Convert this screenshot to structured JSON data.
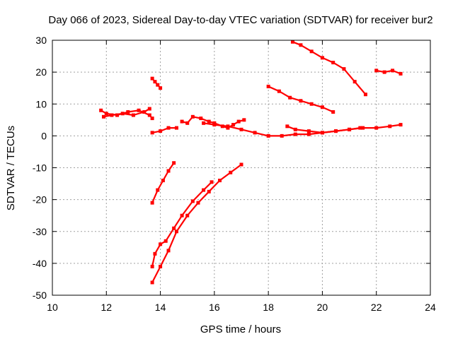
{
  "chart_data": {
    "type": "scatter",
    "title": "Day 066 of 2023, Sidereal Day-to-day VTEC variation (SDTVAR) for receiver bur2",
    "xlabel": "GPS time / hours",
    "ylabel": "SDTVAR / TECUs",
    "xlim": [
      10,
      24
    ],
    "ylim": [
      -50,
      30
    ],
    "xticks": [
      10,
      12,
      14,
      16,
      18,
      20,
      22,
      24
    ],
    "yticks": [
      -50,
      -40,
      -30,
      -20,
      -10,
      0,
      10,
      20,
      30
    ],
    "grid": true,
    "legend": "none",
    "color": "#ff0000",
    "marker": "plus",
    "series": [
      {
        "x": [
          11.8,
          12.0,
          12.4,
          12.8,
          13.2,
          13.6,
          13.7
        ],
        "y": [
          8.0,
          7.0,
          6.5,
          7.5,
          8.0,
          6.5,
          5.5
        ]
      },
      {
        "x": [
          11.9,
          12.2,
          12.6,
          13.0,
          13.4,
          13.6
        ],
        "y": [
          6.0,
          6.5,
          7.0,
          6.5,
          7.5,
          8.5
        ]
      },
      {
        "x": [
          13.7,
          13.8,
          13.9,
          14.0
        ],
        "y": [
          18.0,
          17.0,
          16.0,
          15.0
        ]
      },
      {
        "x": [
          13.7,
          14.0,
          14.3,
          14.6
        ],
        "y": [
          1.0,
          1.5,
          2.5,
          2.5
        ]
      },
      {
        "x": [
          13.7,
          13.9,
          14.1,
          14.3,
          14.5
        ],
        "y": [
          -21.0,
          -17.0,
          -14.0,
          -11.0,
          -8.5
        ]
      },
      {
        "x": [
          13.7,
          13.8,
          14.0,
          14.2,
          14.5,
          14.8,
          15.2,
          15.6,
          15.9
        ],
        "y": [
          -41.0,
          -37.0,
          -34.0,
          -33.0,
          -29.0,
          -25.0,
          -20.5,
          -17.0,
          -14.5
        ]
      },
      {
        "x": [
          13.7,
          14.0,
          14.3,
          14.6,
          15.0,
          15.4,
          15.8,
          16.2,
          16.6,
          17.0
        ],
        "y": [
          -46.0,
          -41.0,
          -36.0,
          -30.0,
          -25.0,
          -21.0,
          -17.5,
          -14.0,
          -11.5,
          -9.0
        ]
      },
      {
        "x": [
          14.8,
          15.0,
          15.2,
          15.5,
          15.8,
          16.0,
          16.3,
          16.5,
          16.7,
          16.9,
          17.1
        ],
        "y": [
          4.5,
          4.0,
          6.0,
          5.5,
          4.5,
          4.0,
          3.0,
          2.5,
          3.5,
          4.5,
          5.0
        ]
      },
      {
        "x": [
          15.6,
          16.0,
          16.5,
          17.0,
          17.5,
          18.0,
          18.5,
          19.0,
          19.5,
          20.0,
          20.5,
          21.0,
          21.5,
          22.0,
          22.5,
          22.9
        ],
        "y": [
          4.0,
          3.5,
          3.0,
          2.0,
          1.0,
          0.0,
          0.0,
          0.5,
          0.5,
          1.0,
          1.5,
          2.0,
          2.5,
          2.5,
          3.0,
          3.5
        ]
      },
      {
        "x": [
          18.7,
          19.0,
          19.5,
          20.0,
          20.5,
          21.0,
          21.4
        ],
        "y": [
          3.0,
          2.0,
          1.5,
          1.0,
          1.5,
          2.0,
          2.5
        ]
      },
      {
        "x": [
          18.0,
          18.4,
          18.8,
          19.2,
          19.6,
          20.0,
          20.4
        ],
        "y": [
          15.5,
          14.0,
          12.0,
          11.0,
          10.0,
          9.0,
          7.5
        ]
      },
      {
        "x": [
          18.9,
          19.2,
          19.6,
          20.0,
          20.4,
          20.8,
          21.2,
          21.6
        ],
        "y": [
          29.5,
          28.5,
          26.5,
          24.5,
          23.0,
          21.0,
          17.0,
          13.0
        ]
      },
      {
        "x": [
          22.0,
          22.3,
          22.6,
          22.9
        ],
        "y": [
          20.5,
          20.0,
          20.5,
          19.5
        ]
      }
    ]
  }
}
